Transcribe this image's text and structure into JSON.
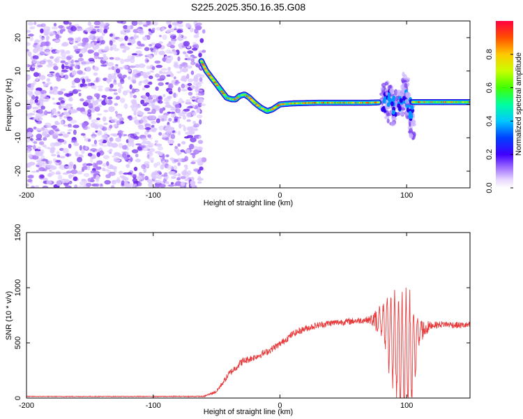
{
  "title": "S225.2025.350.16.35.G08",
  "chart_data": [
    {
      "type": "heatmap",
      "name": "spectrogram",
      "xlabel": "Height of straight line (km)",
      "ylabel": "Frequency (Hz)",
      "xlim": [
        -200,
        150
      ],
      "ylim": [
        -25,
        25
      ],
      "xticks": [
        -200,
        -100,
        0,
        100
      ],
      "yticks": [
        -20,
        -10,
        0,
        10,
        20
      ],
      "noise_region_x": [
        -200,
        -60
      ],
      "track": {
        "x": [
          -62,
          -58,
          -52,
          -46,
          -42,
          -38,
          -35,
          -32,
          -28,
          -24,
          -20,
          -15,
          -10,
          -6,
          -2,
          0,
          10,
          30,
          50,
          70,
          78
        ],
        "freq": [
          13,
          10,
          7,
          4,
          2,
          1.5,
          1.5,
          2.5,
          3,
          2,
          0.5,
          -1,
          -2,
          -1.5,
          -0.5,
          0,
          0.3,
          0.5,
          0.5,
          0.5,
          0.6
        ],
        "x2": [
          105,
          150
        ],
        "freq2": [
          0.7,
          0.7
        ],
        "disturbed_x": [
          80,
          105
        ],
        "burst_x": [
          82,
          86,
          90,
          95,
          99,
          102,
          104
        ],
        "burst_freq_span": [
          [
            -4,
            6
          ],
          [
            -5,
            8
          ],
          [
            -6,
            5
          ],
          [
            -3,
            4
          ],
          [
            -2,
            9
          ],
          [
            -5,
            3
          ],
          [
            -10,
            2
          ]
        ]
      },
      "colorbar": {
        "label": "Normalized spectral amplitude",
        "range": [
          0,
          1
        ],
        "ticks": [
          0.0,
          0.2,
          0.4,
          0.6,
          0.8
        ],
        "tick_labels": [
          "0.0",
          "0.2",
          "0.4",
          "0.6",
          "0.8"
        ]
      }
    },
    {
      "type": "line",
      "name": "snr",
      "xlabel": "Height of straight line (km)",
      "ylabel": "SNR (10 * v/v)",
      "xlim": [
        -200,
        150
      ],
      "ylim": [
        0,
        1500
      ],
      "xticks": [
        -200,
        -100,
        0,
        100
      ],
      "yticks": [
        0,
        500,
        1000,
        1500
      ],
      "color": "#e8383a",
      "series": [
        {
          "name": "SNR",
          "x": [
            -200,
            -100,
            -60,
            -50,
            -40,
            -30,
            -20,
            -10,
            0,
            10,
            20,
            30,
            40,
            50,
            60,
            70,
            80,
            85,
            90,
            95,
            100,
            105,
            110,
            120,
            130,
            140,
            150
          ],
          "values": [
            15,
            15,
            15,
            60,
            220,
            330,
            370,
            420,
            490,
            580,
            630,
            660,
            680,
            690,
            700,
            710,
            700,
            650,
            500,
            400,
            380,
            420,
            600,
            660,
            670,
            660,
            660
          ],
          "oscillation_amplitude": [
            3,
            3,
            5,
            15,
            30,
            35,
            30,
            30,
            30,
            30,
            30,
            30,
            30,
            30,
            30,
            30,
            150,
            350,
            550,
            650,
            650,
            500,
            120,
            30,
            30,
            30,
            30
          ]
        }
      ]
    }
  ]
}
